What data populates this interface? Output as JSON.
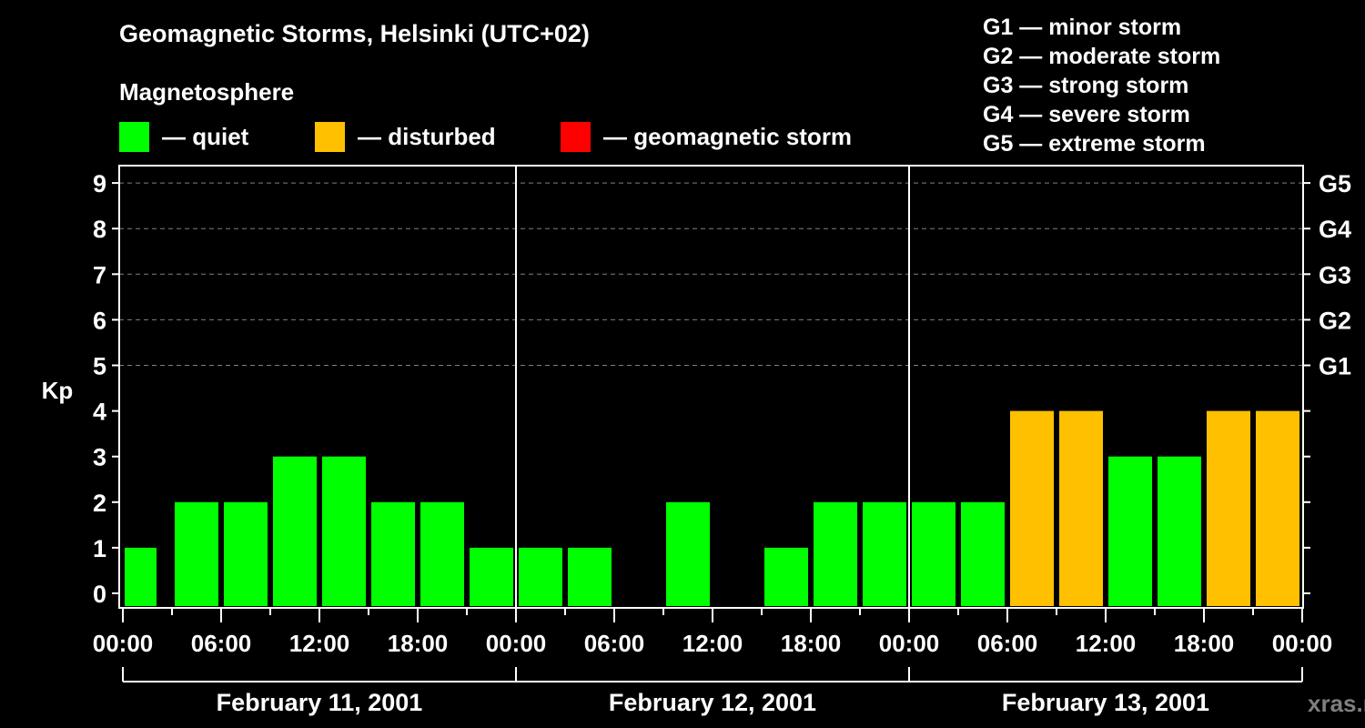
{
  "header": {
    "title": "Geomagnetic Storms, Helsinki (UTC+02)",
    "subtitle": "Magnetosphere"
  },
  "legend": [
    {
      "label": "— quiet",
      "color": "#00ff00"
    },
    {
      "label": "— disturbed",
      "color": "#ffc000"
    },
    {
      "label": "— geomagnetic storm",
      "color": "#ff0000"
    }
  ],
  "storm_scale": [
    "G1 — minor storm",
    "G2 — moderate storm",
    "G3 — strong storm",
    "G4 — severe storm",
    "G5 — extreme storm"
  ],
  "watermark": "xras.ru",
  "chart_data": {
    "type": "bar",
    "title": "Geomagnetic Storms, Helsinki (UTC+02)",
    "xlabel": "",
    "ylabel": "Kp",
    "ylim": [
      0,
      9
    ],
    "y_ticks": [
      0,
      1,
      2,
      3,
      4,
      5,
      6,
      7,
      8,
      9
    ],
    "right_axis_labels": [
      {
        "kp": 5,
        "label": "G1"
      },
      {
        "kp": 6,
        "label": "G2"
      },
      {
        "kp": 7,
        "label": "G3"
      },
      {
        "kp": 8,
        "label": "G4"
      },
      {
        "kp": 9,
        "label": "G5"
      }
    ],
    "grid": "dashed horizontal lines at Kp 5-9",
    "x_tick_labels": [
      "00:00",
      "06:00",
      "12:00",
      "18:00",
      "00:00",
      "06:00",
      "12:00",
      "18:00",
      "00:00",
      "06:00",
      "12:00",
      "18:00",
      "00:00"
    ],
    "day_labels": [
      "February 11, 2001",
      "February 12, 2001",
      "February 13, 2001"
    ],
    "interval_hours": 3,
    "colors": {
      "quiet": "#00ff00",
      "disturbed": "#ffc000",
      "storm": "#ff0000"
    },
    "series": [
      {
        "name": "February 11, 2001",
        "categories": [
          "00:00",
          "03:00",
          "06:00",
          "09:00",
          "12:00",
          "15:00",
          "18:00",
          "21:00"
        ],
        "values": [
          1,
          2,
          2,
          3,
          3,
          2,
          2,
          1
        ]
      },
      {
        "name": "February 12, 2001",
        "categories": [
          "00:00",
          "03:00",
          "06:00",
          "09:00",
          "12:00",
          "15:00",
          "18:00",
          "21:00"
        ],
        "values": [
          1,
          1,
          0,
          2,
          0,
          1,
          2,
          2
        ]
      },
      {
        "name": "February 13, 2001",
        "categories": [
          "00:00",
          "03:00",
          "06:00",
          "09:00",
          "12:00",
          "15:00",
          "18:00",
          "21:00"
        ],
        "values": [
          2,
          2,
          4,
          4,
          3,
          3,
          4,
          4
        ]
      }
    ],
    "values": [
      1,
      2,
      2,
      3,
      3,
      2,
      2,
      1,
      1,
      1,
      0,
      2,
      0,
      1,
      2,
      2,
      2,
      2,
      4,
      4,
      3,
      3,
      4,
      4
    ]
  }
}
